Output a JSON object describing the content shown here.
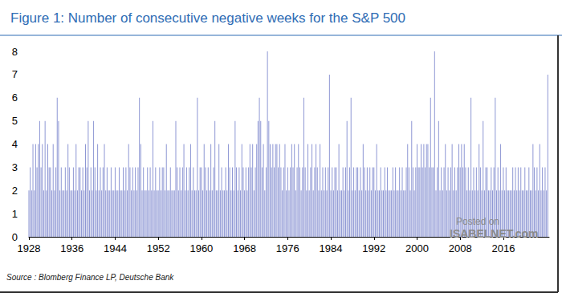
{
  "chart_data": {
    "type": "bar",
    "title": "Figure 1: Number of consecutive negative weeks for the S&P 500",
    "source": "Source : Blomberg Finance LP, Deutsche Bank",
    "annotations": [
      "Posted on",
      "ISABELNET.com"
    ],
    "color": "#8e97d4",
    "grid": false,
    "xlim": [
      1928,
      2024.5
    ],
    "xticks": [
      1928,
      1936,
      1944,
      1952,
      1960,
      1968,
      1976,
      1984,
      1992,
      2000,
      2008,
      2016
    ],
    "ylim": [
      0,
      8
    ],
    "yticks": [
      0,
      1,
      2,
      3,
      4,
      5,
      6,
      7,
      8
    ],
    "x": [
      1928,
      1928.25,
      1928.5,
      1928.75,
      1929,
      1929.25,
      1929.5,
      1929.75,
      1930,
      1930.25,
      1930.5,
      1930.75,
      1931,
      1931.25,
      1931.5,
      1931.75,
      1932,
      1932.25,
      1932.5,
      1932.75,
      1933,
      1933.25,
      1933.5,
      1933.75,
      1934,
      1934.25,
      1934.5,
      1934.75,
      1935,
      1935.25,
      1935.5,
      1935.75,
      1936,
      1936.25,
      1936.5,
      1936.75,
      1937,
      1937.25,
      1937.5,
      1937.75,
      1938,
      1938.25,
      1938.5,
      1938.75,
      1939,
      1939.25,
      1939.5,
      1939.75,
      1940,
      1940.25,
      1940.5,
      1940.75,
      1941,
      1941.25,
      1941.5,
      1941.75,
      1942,
      1942.25,
      1942.5,
      1942.75,
      1943,
      1943.25,
      1943.5,
      1943.75,
      1944,
      1944.25,
      1944.5,
      1944.75,
      1945,
      1945.25,
      1945.5,
      1945.75,
      1946,
      1946.25,
      1946.5,
      1946.75,
      1947,
      1947.25,
      1947.5,
      1947.75,
      1948,
      1948.25,
      1948.5,
      1948.75,
      1949,
      1949.25,
      1949.5,
      1949.75,
      1950,
      1950.25,
      1950.5,
      1950.75,
      1951,
      1951.25,
      1951.5,
      1951.75,
      1952,
      1952.25,
      1952.5,
      1952.75,
      1953,
      1953.25,
      1953.5,
      1953.75,
      1954,
      1954.25,
      1954.5,
      1954.75,
      1955,
      1955.25,
      1955.5,
      1955.75,
      1956,
      1956.25,
      1956.5,
      1956.75,
      1957,
      1957.25,
      1957.5,
      1957.75,
      1958,
      1958.25,
      1958.5,
      1958.75,
      1959,
      1959.25,
      1959.5,
      1959.75,
      1960,
      1960.25,
      1960.5,
      1960.75,
      1961,
      1961.25,
      1961.5,
      1961.75,
      1962,
      1962.25,
      1962.5,
      1962.75,
      1963,
      1963.25,
      1963.5,
      1963.75,
      1964,
      1964.25,
      1964.5,
      1964.75,
      1965,
      1965.25,
      1965.5,
      1965.75,
      1966,
      1966.25,
      1966.5,
      1966.75,
      1967,
      1967.25,
      1967.5,
      1967.75,
      1968,
      1968.25,
      1968.5,
      1968.75,
      1969,
      1969.25,
      1969.5,
      1969.75,
      1970,
      1970.25,
      1970.5,
      1970.75,
      1971,
      1971.25,
      1971.5,
      1971.75,
      1972,
      1972.25,
      1972.5,
      1972.75,
      1973,
      1973.25,
      1973.5,
      1973.75,
      1974,
      1974.25,
      1974.5,
      1974.75,
      1975,
      1975.25,
      1975.5,
      1975.75,
      1976,
      1976.25,
      1976.5,
      1976.75,
      1977,
      1977.25,
      1977.5,
      1977.75,
      1978,
      1978.25,
      1978.5,
      1978.75,
      1979,
      1979.25,
      1979.5,
      1979.75,
      1980,
      1980.25,
      1980.5,
      1980.75,
      1981,
      1981.25,
      1981.5,
      1981.75,
      1982,
      1982.25,
      1982.5,
      1982.75,
      1983,
      1983.25,
      1983.5,
      1983.75,
      1984,
      1984.25,
      1984.5,
      1984.75,
      1985,
      1985.25,
      1985.5,
      1985.75,
      1986,
      1986.25,
      1986.5,
      1986.75,
      1987,
      1987.25,
      1987.5,
      1987.75,
      1988,
      1988.25,
      1988.5,
      1988.75,
      1989,
      1989.25,
      1989.5,
      1989.75,
      1990,
      1990.25,
      1990.5,
      1990.75,
      1991,
      1991.25,
      1991.5,
      1991.75,
      1992,
      1992.25,
      1992.5,
      1992.75,
      1993,
      1993.25,
      1993.5,
      1993.75,
      1994,
      1994.25,
      1994.5,
      1994.75,
      1995,
      1995.25,
      1995.5,
      1995.75,
      1996,
      1996.25,
      1996.5,
      1996.75,
      1997,
      1997.25,
      1997.5,
      1997.75,
      1998,
      1998.25,
      1998.5,
      1998.75,
      1999,
      1999.25,
      1999.5,
      1999.75,
      2000,
      2000.25,
      2000.5,
      2000.75,
      2001,
      2001.25,
      2001.5,
      2001.75,
      2002,
      2002.25,
      2002.5,
      2002.75,
      2003,
      2003.25,
      2003.5,
      2003.75,
      2004,
      2004.25,
      2004.5,
      2004.75,
      2005,
      2005.25,
      2005.5,
      2005.75,
      2006,
      2006.25,
      2006.5,
      2006.75,
      2007,
      2007.25,
      2007.5,
      2007.75,
      2008,
      2008.25,
      2008.5,
      2008.75,
      2009,
      2009.25,
      2009.5,
      2009.75,
      2010,
      2010.25,
      2010.5,
      2010.75,
      2011,
      2011.25,
      2011.5,
      2011.75,
      2012,
      2012.25,
      2012.5,
      2012.75,
      2013,
      2013.25,
      2013.5,
      2013.75,
      2014,
      2014.25,
      2014.5,
      2014.75,
      2015,
      2015.25,
      2015.5,
      2015.75,
      2016,
      2016.25,
      2016.5,
      2016.75,
      2017,
      2017.25,
      2017.5,
      2017.75,
      2018,
      2018.25,
      2018.5,
      2018.75,
      2019,
      2019.25,
      2019.5,
      2019.75,
      2020,
      2020.25,
      2020.5,
      2020.75,
      2021,
      2021.25,
      2021.5,
      2021.75,
      2022,
      2022.25,
      2022.5,
      2022.75,
      2023,
      2023.25,
      2023.5,
      2023.75,
      2024,
      2024.25
    ],
    "values": [
      2,
      3,
      2,
      4,
      2,
      4,
      3,
      4,
      5,
      3,
      4,
      2,
      5,
      2,
      4,
      3,
      3,
      2,
      4,
      2,
      3,
      6,
      5,
      2,
      3,
      2,
      2,
      3,
      2,
      4,
      3,
      2,
      2,
      3,
      2,
      4,
      2,
      3,
      3,
      2,
      3,
      2,
      4,
      3,
      5,
      2,
      3,
      2,
      5,
      3,
      2,
      4,
      2,
      3,
      2,
      3,
      4,
      2,
      3,
      2,
      2,
      3,
      2,
      2,
      3,
      2,
      2,
      3,
      2,
      2,
      3,
      2,
      3,
      2,
      4,
      3,
      2,
      3,
      2,
      3,
      2,
      3,
      6,
      4,
      2,
      3,
      2,
      2,
      3,
      2,
      3,
      2,
      5,
      2,
      3,
      2,
      2,
      3,
      2,
      3,
      3,
      2,
      4,
      2,
      2,
      3,
      2,
      2,
      2,
      5,
      3,
      2,
      3,
      2,
      3,
      4,
      2,
      3,
      2,
      3,
      4,
      2,
      3,
      2,
      2,
      6,
      2,
      3,
      3,
      2,
      4,
      3,
      2,
      3,
      2,
      4,
      2,
      3,
      5,
      2,
      2,
      4,
      2,
      3,
      2,
      2,
      3,
      2,
      4,
      3,
      2,
      3,
      2,
      5,
      3,
      2,
      3,
      2,
      4,
      3,
      2,
      3,
      2,
      3,
      4,
      3,
      4,
      2,
      3,
      4,
      5,
      6,
      5,
      3,
      4,
      2,
      3,
      8,
      5,
      4,
      3,
      4,
      3,
      4,
      4,
      3,
      4,
      3,
      2,
      3,
      4,
      2,
      3,
      2,
      3,
      4,
      3,
      4,
      2,
      3,
      4,
      3,
      2,
      3,
      6,
      3,
      2,
      4,
      2,
      3,
      4,
      2,
      3,
      4,
      3,
      2,
      4,
      2,
      3,
      2,
      3,
      2,
      3,
      7,
      2,
      3,
      2,
      3,
      3,
      2,
      4,
      2,
      2,
      3,
      2,
      3,
      5,
      2,
      3,
      6,
      2,
      3,
      2,
      3,
      3,
      2,
      3,
      2,
      4,
      3,
      2,
      3,
      2,
      3,
      2,
      3,
      3,
      2,
      4,
      2,
      2,
      3,
      2,
      2,
      3,
      2,
      3,
      2,
      2,
      2,
      3,
      2,
      3,
      2,
      2,
      3,
      2,
      3,
      2,
      2,
      3,
      4,
      3,
      2,
      5,
      3,
      2,
      3,
      4,
      3,
      3,
      4,
      3,
      4,
      3,
      4,
      4,
      3,
      6,
      3,
      3,
      8,
      2,
      3,
      5,
      2,
      3,
      2,
      3,
      4,
      2,
      3,
      2,
      3,
      4,
      2,
      3,
      2,
      3,
      4,
      3,
      4,
      3,
      4,
      3,
      2,
      3,
      2,
      6,
      2,
      3,
      2,
      3,
      2,
      4,
      3,
      2,
      5,
      2,
      3,
      3,
      2,
      2,
      3,
      2,
      3,
      6,
      2,
      3,
      2,
      4,
      2,
      3,
      2,
      3,
      2,
      2,
      2,
      2,
      3,
      2,
      3,
      2,
      3,
      2,
      3,
      2,
      2,
      3,
      2,
      2,
      3,
      2,
      2,
      4,
      3,
      2,
      3,
      2,
      4,
      2,
      3,
      2,
      3,
      2,
      7
    ]
  }
}
